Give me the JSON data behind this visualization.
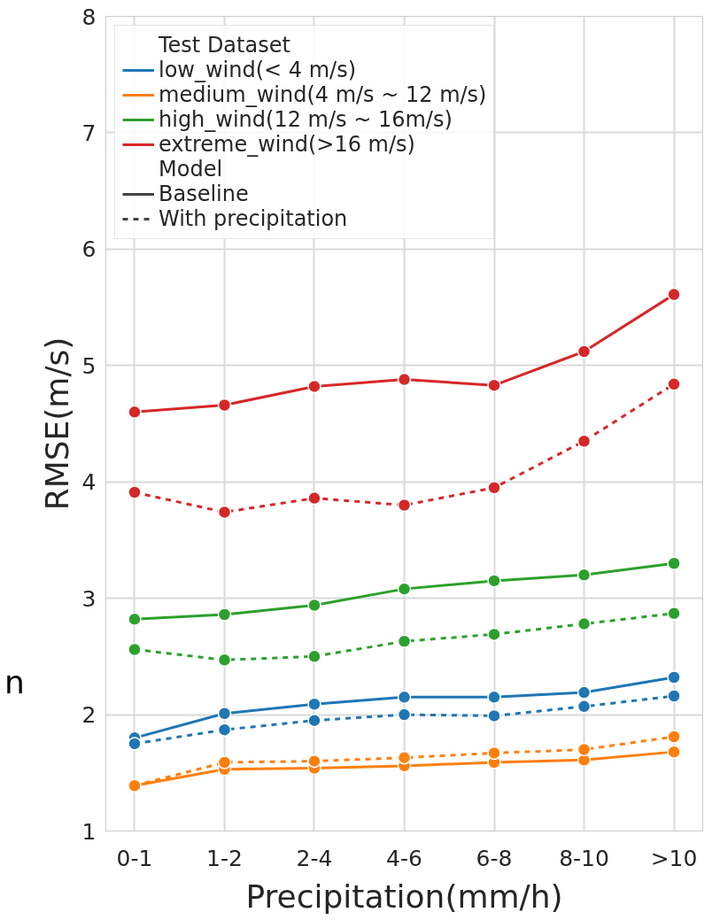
{
  "chart_data": {
    "type": "line",
    "xlabel": "Precipitation(mm/h)",
    "ylabel": "RMSE(m/s)",
    "categories": [
      "0-1",
      "1-2",
      "2-4",
      "4-6",
      "6-8",
      "8-10",
      ">10"
    ],
    "ylim": [
      1,
      8
    ],
    "yticks": [
      1,
      2,
      3,
      4,
      5,
      6,
      7,
      8
    ],
    "grid": true,
    "legend": "top left",
    "marker": "circle",
    "legend_title": "Test Dataset",
    "annotations": [
      "Model",
      "Baseline",
      "With precipitation",
      "n"
    ],
    "series": [
      {
        "name": "low_wind(< 4 m/s)",
        "color": "#1f77b4",
        "line_style": "solid",
        "values": [
          1.8,
          2.01,
          2.09,
          2.15,
          2.15,
          2.19,
          2.32
        ]
      },
      {
        "name": "medium_wind(4 m/s ~ 12 m/s)",
        "color": "#ff7f0e",
        "line_style": "solid",
        "values": [
          1.39,
          1.53,
          1.54,
          1.56,
          1.59,
          1.61,
          1.68
        ]
      },
      {
        "name": "high_wind(12 m/s ~ 16m/s)",
        "color": "#2ca02c",
        "line_style": "solid",
        "values": [
          2.82,
          2.86,
          2.94,
          3.08,
          3.15,
          3.2,
          3.3
        ]
      },
      {
        "name": "extreme_wind(>16 m/s)",
        "color": "#d62728",
        "line_style": "solid",
        "values": [
          4.6,
          4.66,
          4.82,
          4.88,
          4.83,
          5.12,
          5.61
        ]
      },
      {
        "color": "#1f77b4",
        "line_style": "dashed",
        "values": [
          1.75,
          1.87,
          1.95,
          2.0,
          1.99,
          2.07,
          2.16
        ]
      },
      {
        "color": "#ff7f0e",
        "line_style": "dashed",
        "values": [
          1.39,
          1.59,
          1.6,
          1.63,
          1.67,
          1.7,
          1.81
        ]
      },
      {
        "color": "#2ca02c",
        "line_style": "dashed",
        "values": [
          2.56,
          2.47,
          2.5,
          2.63,
          2.69,
          2.78,
          2.87
        ]
      },
      {
        "color": "#d62728",
        "line_style": "dashed",
        "values": [
          3.91,
          3.74,
          3.86,
          3.8,
          3.95,
          4.35,
          4.84
        ]
      }
    ]
  }
}
